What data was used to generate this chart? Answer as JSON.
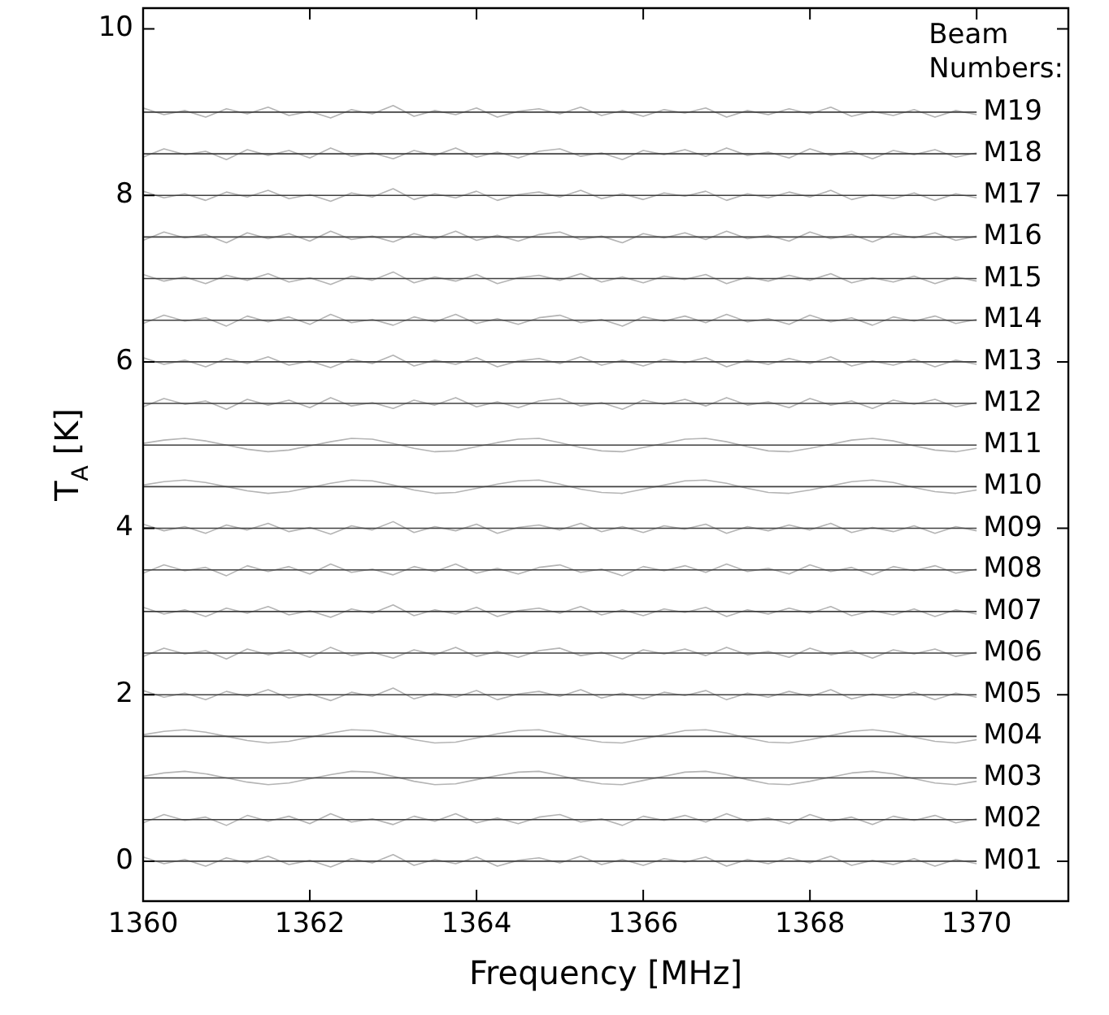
{
  "chart_data": {
    "type": "line",
    "xlabel": "Frequency [MHz]",
    "ylabel": "T$_{A}$ [K]",
    "legend_title": "Beam Numbers:",
    "xlim": [
      1360,
      1371.1
    ],
    "ylim": [
      -0.48,
      10.25
    ],
    "xticks": [
      1360,
      1362,
      1364,
      1366,
      1368,
      1370
    ],
    "yticks": [
      0,
      2,
      4,
      6,
      8,
      10
    ],
    "grid": false,
    "legend": false,
    "marker": "none",
    "line_style": "solid",
    "x": [
      1360,
      1360.25,
      1360.5,
      1360.75,
      1361,
      1361.25,
      1361.5,
      1361.75,
      1362,
      1362.25,
      1362.5,
      1362.75,
      1363,
      1363.25,
      1363.5,
      1363.75,
      1364,
      1364.25,
      1364.5,
      1364.75,
      1365,
      1365.25,
      1365.5,
      1365.75,
      1366,
      1366.25,
      1366.5,
      1366.75,
      1367,
      1367.25,
      1367.5,
      1367.75,
      1368,
      1368.25,
      1368.5,
      1368.75,
      1369,
      1369.25,
      1369.5,
      1369.75,
      1370
    ],
    "ref_lines": [
      {
        "axis": "y",
        "value": 0,
        "color": "#404040"
      },
      {
        "axis": "y",
        "value": 0.5,
        "color": "#404040"
      },
      {
        "axis": "y",
        "value": 1,
        "color": "#404040"
      },
      {
        "axis": "y",
        "value": 1.5,
        "color": "#404040"
      },
      {
        "axis": "y",
        "value": 2,
        "color": "#404040"
      },
      {
        "axis": "y",
        "value": 2.5,
        "color": "#404040"
      },
      {
        "axis": "y",
        "value": 3,
        "color": "#404040"
      },
      {
        "axis": "y",
        "value": 3.5,
        "color": "#404040"
      },
      {
        "axis": "y",
        "value": 4,
        "color": "#404040"
      },
      {
        "axis": "y",
        "value": 4.5,
        "color": "#404040"
      },
      {
        "axis": "y",
        "value": 5,
        "color": "#404040"
      },
      {
        "axis": "y",
        "value": 5.5,
        "color": "#404040"
      },
      {
        "axis": "y",
        "value": 6,
        "color": "#404040"
      },
      {
        "axis": "y",
        "value": 6.5,
        "color": "#404040"
      },
      {
        "axis": "y",
        "value": 7,
        "color": "#404040"
      },
      {
        "axis": "y",
        "value": 7.5,
        "color": "#404040"
      },
      {
        "axis": "y",
        "value": 8,
        "color": "#404040"
      },
      {
        "axis": "y",
        "value": 8.5,
        "color": "#404040"
      },
      {
        "axis": "y",
        "value": 9,
        "color": "#404040"
      }
    ],
    "series": [
      {
        "name": "M01",
        "color": "#b4b4b4",
        "values": [
          0.05,
          -0.03,
          0.02,
          -0.06,
          0.04,
          -0.02,
          0.06,
          -0.04,
          0.01,
          -0.07,
          0.03,
          -0.02,
          0.08,
          -0.05,
          0.02,
          -0.03,
          0.05,
          -0.06,
          0.01,
          0.04,
          -0.02,
          0.06,
          -0.04,
          0.02,
          -0.05,
          0.03,
          -0.01,
          0.05,
          -0.06,
          0.02,
          -0.03,
          0.04,
          -0.02,
          0.06,
          -0.05,
          0.01,
          -0.04,
          0.03,
          -0.06,
          0.02,
          -0.03
        ]
      },
      {
        "name": "M02",
        "color": "#b4b4b4",
        "values": [
          0.46,
          0.56,
          0.49,
          0.53,
          0.43,
          0.55,
          0.48,
          0.54,
          0.45,
          0.57,
          0.47,
          0.51,
          0.44,
          0.54,
          0.48,
          0.57,
          0.46,
          0.52,
          0.45,
          0.53,
          0.56,
          0.47,
          0.51,
          0.43,
          0.54,
          0.49,
          0.55,
          0.47,
          0.57,
          0.48,
          0.52,
          0.45,
          0.56,
          0.48,
          0.53,
          0.44,
          0.54,
          0.49,
          0.55,
          0.46,
          0.51
        ]
      },
      {
        "name": "M03",
        "color": "#b4b4b4",
        "values": [
          1.02,
          1.06,
          1.08,
          1.05,
          1.0,
          0.95,
          0.92,
          0.94,
          0.99,
          1.04,
          1.08,
          1.07,
          1.02,
          0.96,
          0.92,
          0.93,
          0.98,
          1.03,
          1.07,
          1.08,
          1.03,
          0.97,
          0.93,
          0.92,
          0.97,
          1.02,
          1.07,
          1.08,
          1.04,
          0.98,
          0.93,
          0.92,
          0.96,
          1.01,
          1.06,
          1.08,
          1.05,
          0.99,
          0.94,
          0.92,
          0.96
        ]
      },
      {
        "name": "M04",
        "color": "#b4b4b4",
        "values": [
          1.52,
          1.56,
          1.58,
          1.55,
          1.5,
          1.45,
          1.42,
          1.44,
          1.49,
          1.54,
          1.58,
          1.57,
          1.52,
          1.46,
          1.42,
          1.43,
          1.48,
          1.53,
          1.57,
          1.58,
          1.53,
          1.47,
          1.43,
          1.42,
          1.47,
          1.52,
          1.57,
          1.58,
          1.54,
          1.48,
          1.43,
          1.42,
          1.46,
          1.51,
          1.56,
          1.58,
          1.55,
          1.49,
          1.44,
          1.42,
          1.46
        ]
      },
      {
        "name": "M05",
        "color": "#b4b4b4",
        "values": [
          2.05,
          1.97,
          2.02,
          1.94,
          2.04,
          1.98,
          2.06,
          1.96,
          2.01,
          1.93,
          2.03,
          1.98,
          2.08,
          1.95,
          2.02,
          1.97,
          2.05,
          1.94,
          2.01,
          2.04,
          1.98,
          2.06,
          1.96,
          2.02,
          1.95,
          2.03,
          1.99,
          2.05,
          1.94,
          2.02,
          1.97,
          2.04,
          1.98,
          2.06,
          1.95,
          2.01,
          1.96,
          2.03,
          1.94,
          2.02,
          1.97
        ]
      },
      {
        "name": "M06",
        "color": "#b4b4b4",
        "values": [
          2.46,
          2.56,
          2.49,
          2.53,
          2.43,
          2.55,
          2.48,
          2.54,
          2.45,
          2.57,
          2.47,
          2.51,
          2.44,
          2.54,
          2.48,
          2.57,
          2.46,
          2.52,
          2.45,
          2.53,
          2.56,
          2.47,
          2.51,
          2.43,
          2.54,
          2.49,
          2.55,
          2.47,
          2.57,
          2.48,
          2.52,
          2.45,
          2.56,
          2.48,
          2.53,
          2.44,
          2.54,
          2.49,
          2.55,
          2.46,
          2.51
        ]
      },
      {
        "name": "M07",
        "color": "#b4b4b4",
        "values": [
          3.05,
          2.97,
          3.02,
          2.94,
          3.04,
          2.98,
          3.06,
          2.96,
          3.01,
          2.93,
          3.03,
          2.98,
          3.08,
          2.95,
          3.02,
          2.97,
          3.05,
          2.94,
          3.01,
          3.04,
          2.98,
          3.06,
          2.96,
          3.02,
          2.95,
          3.03,
          2.99,
          3.05,
          2.94,
          3.02,
          2.97,
          3.04,
          2.98,
          3.06,
          2.95,
          3.01,
          2.96,
          3.03,
          2.94,
          3.02,
          2.97
        ]
      },
      {
        "name": "M08",
        "color": "#b4b4b4",
        "values": [
          3.46,
          3.56,
          3.49,
          3.53,
          3.43,
          3.55,
          3.48,
          3.54,
          3.45,
          3.57,
          3.47,
          3.51,
          3.44,
          3.54,
          3.48,
          3.57,
          3.46,
          3.52,
          3.45,
          3.53,
          3.56,
          3.47,
          3.51,
          3.43,
          3.54,
          3.49,
          3.55,
          3.47,
          3.57,
          3.48,
          3.52,
          3.45,
          3.56,
          3.48,
          3.53,
          3.44,
          3.54,
          3.49,
          3.55,
          3.46,
          3.51
        ]
      },
      {
        "name": "M09",
        "color": "#b4b4b4",
        "values": [
          4.05,
          3.97,
          4.02,
          3.94,
          4.04,
          3.98,
          4.06,
          3.96,
          4.01,
          3.93,
          4.03,
          3.98,
          4.08,
          3.95,
          4.02,
          3.97,
          4.05,
          3.94,
          4.01,
          4.04,
          3.98,
          4.06,
          3.96,
          4.02,
          3.95,
          4.03,
          3.99,
          4.05,
          3.94,
          4.02,
          3.97,
          4.04,
          3.98,
          4.06,
          3.95,
          4.01,
          3.96,
          4.03,
          3.94,
          4.02,
          3.97
        ]
      },
      {
        "name": "M10",
        "color": "#b4b4b4",
        "values": [
          4.52,
          4.56,
          4.58,
          4.55,
          4.5,
          4.45,
          4.42,
          4.44,
          4.49,
          4.54,
          4.58,
          4.57,
          4.52,
          4.46,
          4.42,
          4.43,
          4.48,
          4.53,
          4.57,
          4.58,
          4.53,
          4.47,
          4.43,
          4.42,
          4.47,
          4.52,
          4.57,
          4.58,
          4.54,
          4.48,
          4.43,
          4.42,
          4.46,
          4.51,
          4.56,
          4.58,
          4.55,
          4.49,
          4.44,
          4.42,
          4.46
        ]
      },
      {
        "name": "M11",
        "color": "#b4b4b4",
        "values": [
          5.02,
          5.06,
          5.08,
          5.05,
          5.0,
          4.95,
          4.92,
          4.94,
          4.99,
          5.04,
          5.08,
          5.07,
          5.02,
          4.96,
          4.92,
          4.93,
          4.98,
          5.03,
          5.07,
          5.08,
          5.03,
          4.97,
          4.93,
          4.92,
          4.97,
          5.02,
          5.07,
          5.08,
          5.04,
          4.98,
          4.93,
          4.92,
          4.96,
          5.01,
          5.06,
          5.08,
          5.05,
          4.99,
          4.94,
          4.92,
          4.96
        ]
      },
      {
        "name": "M12",
        "color": "#b4b4b4",
        "values": [
          5.46,
          5.56,
          5.49,
          5.53,
          5.43,
          5.55,
          5.48,
          5.54,
          5.45,
          5.57,
          5.47,
          5.51,
          5.44,
          5.54,
          5.48,
          5.57,
          5.46,
          5.52,
          5.45,
          5.53,
          5.56,
          5.47,
          5.51,
          5.43,
          5.54,
          5.49,
          5.55,
          5.47,
          5.57,
          5.48,
          5.52,
          5.45,
          5.56,
          5.48,
          5.53,
          5.44,
          5.54,
          5.49,
          5.55,
          5.46,
          5.51
        ]
      },
      {
        "name": "M13",
        "color": "#b4b4b4",
        "values": [
          6.05,
          5.97,
          6.02,
          5.94,
          6.04,
          5.98,
          6.06,
          5.96,
          6.01,
          5.93,
          6.03,
          5.98,
          6.08,
          5.95,
          6.02,
          5.97,
          6.05,
          5.94,
          6.01,
          6.04,
          5.98,
          6.06,
          5.96,
          6.02,
          5.95,
          6.03,
          5.99,
          6.05,
          5.94,
          6.02,
          5.97,
          6.04,
          5.98,
          6.06,
          5.95,
          6.01,
          5.96,
          6.03,
          5.94,
          6.02,
          5.97
        ]
      },
      {
        "name": "M14",
        "color": "#b4b4b4",
        "values": [
          6.46,
          6.56,
          6.49,
          6.53,
          6.43,
          6.55,
          6.48,
          6.54,
          6.45,
          6.57,
          6.47,
          6.51,
          6.44,
          6.54,
          6.48,
          6.57,
          6.46,
          6.52,
          6.45,
          6.53,
          6.56,
          6.47,
          6.51,
          6.43,
          6.54,
          6.49,
          6.55,
          6.47,
          6.57,
          6.48,
          6.52,
          6.45,
          6.56,
          6.48,
          6.53,
          6.44,
          6.54,
          6.49,
          6.55,
          6.46,
          6.51
        ]
      },
      {
        "name": "M15",
        "color": "#b4b4b4",
        "values": [
          7.05,
          6.97,
          7.02,
          6.94,
          7.04,
          6.98,
          7.06,
          6.96,
          7.01,
          6.93,
          7.03,
          6.98,
          7.08,
          6.95,
          7.02,
          6.97,
          7.05,
          6.94,
          7.01,
          7.04,
          6.98,
          7.06,
          6.96,
          7.02,
          6.95,
          7.03,
          6.99,
          7.05,
          6.94,
          7.02,
          6.97,
          7.04,
          6.98,
          7.06,
          6.95,
          7.01,
          6.96,
          7.03,
          6.94,
          7.02,
          6.97
        ]
      },
      {
        "name": "M16",
        "color": "#b4b4b4",
        "values": [
          7.46,
          7.56,
          7.49,
          7.53,
          7.43,
          7.55,
          7.48,
          7.54,
          7.45,
          7.57,
          7.47,
          7.51,
          7.44,
          7.54,
          7.48,
          7.57,
          7.46,
          7.52,
          7.45,
          7.53,
          7.56,
          7.47,
          7.51,
          7.43,
          7.54,
          7.49,
          7.55,
          7.47,
          7.57,
          7.48,
          7.52,
          7.45,
          7.56,
          7.48,
          7.53,
          7.44,
          7.54,
          7.49,
          7.55,
          7.46,
          7.51
        ]
      },
      {
        "name": "M17",
        "color": "#b4b4b4",
        "values": [
          8.05,
          7.97,
          8.02,
          7.94,
          8.04,
          7.98,
          8.06,
          7.96,
          8.01,
          7.93,
          8.03,
          7.98,
          8.08,
          7.95,
          8.02,
          7.97,
          8.05,
          7.94,
          8.01,
          8.04,
          7.98,
          8.06,
          7.96,
          8.02,
          7.95,
          8.03,
          7.99,
          8.05,
          7.94,
          8.02,
          7.97,
          8.04,
          7.98,
          8.06,
          7.95,
          8.01,
          7.96,
          8.03,
          7.94,
          8.02,
          7.97
        ]
      },
      {
        "name": "M18",
        "color": "#b4b4b4",
        "values": [
          8.46,
          8.56,
          8.49,
          8.53,
          8.43,
          8.55,
          8.48,
          8.54,
          8.45,
          8.57,
          8.47,
          8.51,
          8.44,
          8.54,
          8.48,
          8.57,
          8.46,
          8.52,
          8.45,
          8.53,
          8.56,
          8.47,
          8.51,
          8.43,
          8.54,
          8.49,
          8.55,
          8.47,
          8.57,
          8.48,
          8.52,
          8.45,
          8.56,
          8.48,
          8.53,
          8.44,
          8.54,
          8.49,
          8.55,
          8.46,
          8.51
        ]
      },
      {
        "name": "M19",
        "color": "#b4b4b4",
        "values": [
          9.05,
          8.97,
          9.02,
          8.94,
          9.04,
          8.98,
          9.06,
          8.96,
          9.01,
          8.93,
          9.03,
          8.98,
          9.08,
          8.95,
          9.02,
          8.97,
          9.05,
          8.94,
          9.01,
          9.04,
          8.98,
          9.06,
          8.96,
          9.02,
          8.95,
          9.03,
          8.99,
          9.05,
          8.94,
          9.02,
          8.97,
          9.04,
          8.98,
          9.06,
          8.95,
          9.01,
          8.96,
          9.03,
          8.94,
          9.02,
          8.97
        ]
      }
    ]
  }
}
